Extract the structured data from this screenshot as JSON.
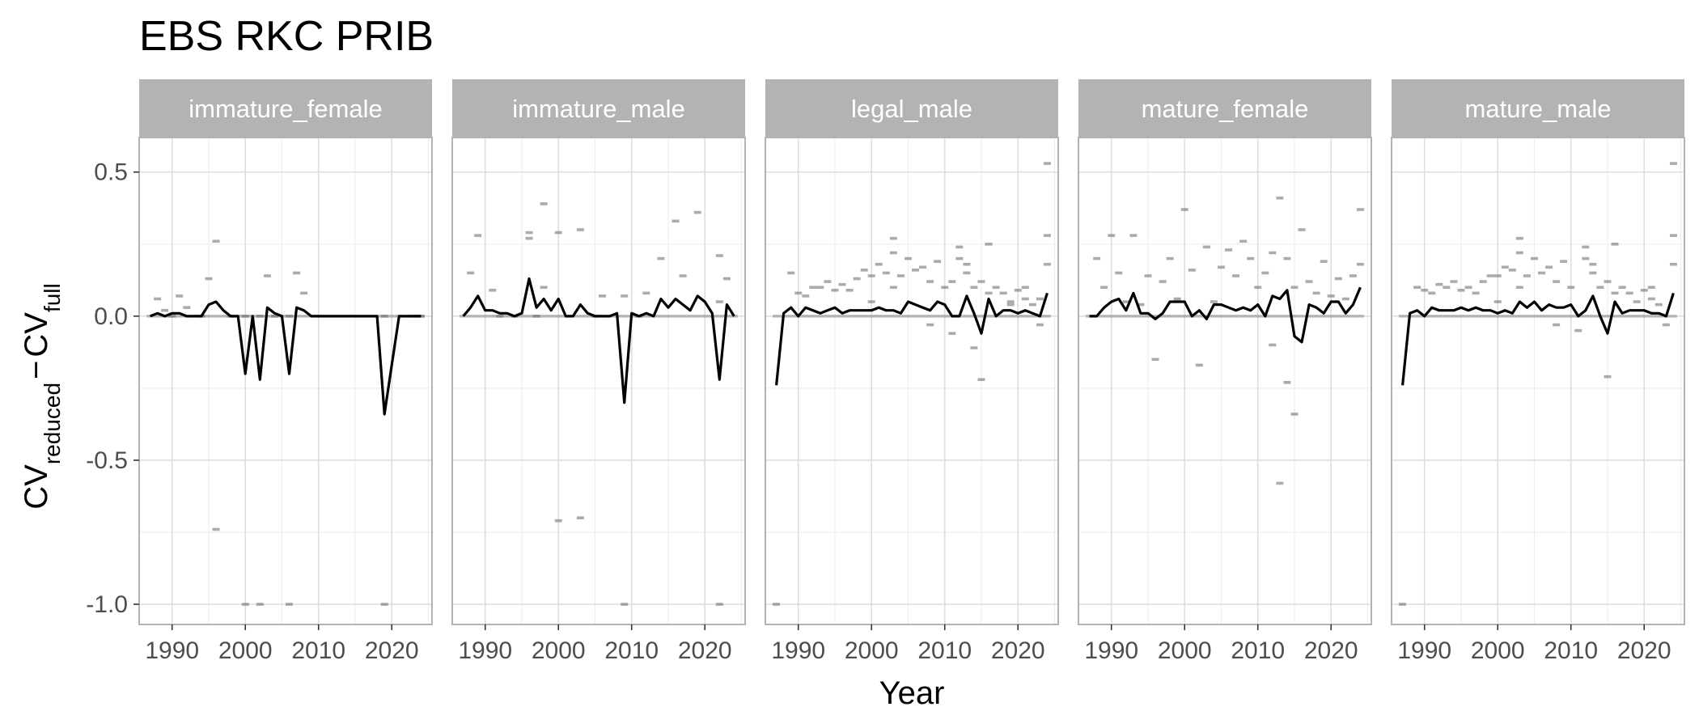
{
  "chart_data": {
    "type": "line",
    "title": "EBS RKC PRIB",
    "xlabel": "Year",
    "ylabel": {
      "main": "CV",
      "sub1": "reduced",
      "minus": "−",
      "main2": "CV",
      "sub2": "full"
    },
    "xlim": [
      1985.5,
      2025.5
    ],
    "ylim": [
      -1.07,
      0.62
    ],
    "x_ticks": [
      1990,
      2000,
      2010,
      2020
    ],
    "x_tick_labels": [
      "1990",
      "2000",
      "2010",
      "2020"
    ],
    "y_ticks": [
      0.5,
      0.0,
      -0.5,
      -1.0
    ],
    "y_tick_labels": [
      "0.5",
      "0.0",
      "-0.5",
      "-1.0"
    ],
    "grid": true,
    "colors": {
      "line": "#000000",
      "points": "#666666",
      "strip": "#b3b3b3",
      "panel_border": "#b3b3b3",
      "grid_major": "#dedede",
      "grid_minor": "#eeeeee"
    },
    "panels": [
      {
        "name": "immature_female",
        "line": {
          "x": [
            1987,
            1988,
            1989,
            1990,
            1991,
            1992,
            1993,
            1994,
            1995,
            1996,
            1997,
            1998,
            1999,
            2000,
            2001,
            2002,
            2003,
            2004,
            2005,
            2006,
            2007,
            2008,
            2009,
            2010,
            2011,
            2012,
            2013,
            2014,
            2015,
            2016,
            2017,
            2018,
            2019,
            2020,
            2021,
            2022,
            2023,
            2024
          ],
          "y": [
            0,
            0.01,
            0,
            0.01,
            0.01,
            0,
            0,
            0,
            0.04,
            0.05,
            0.02,
            0.0,
            0.0,
            -0.2,
            0.0,
            -0.22,
            0.03,
            0.01,
            0.0,
            -0.2,
            0.03,
            0.02,
            0,
            0,
            0,
            0,
            0,
            0,
            0,
            0,
            0,
            0,
            -0.34,
            -0.17,
            0,
            0,
            0,
            0
          ]
        },
        "points": {
          "x": [
            1988,
            1989,
            1991,
            1992,
            1995,
            1996,
            1996,
            2000,
            2002,
            2003,
            2006,
            2007,
            2008,
            2000,
            2002,
            2006,
            2019,
            2019,
            2023,
            2024,
            1990,
            1994,
            1998,
            2004
          ],
          "y": [
            0.06,
            0.02,
            0.07,
            0.03,
            0.13,
            0.26,
            -0.74,
            -1.0,
            -1.0,
            0.14,
            -1.0,
            0.15,
            0.08,
            0.0,
            0.0,
            0.0,
            -1.0,
            0.0,
            0.0,
            0.0,
            0.0,
            0.0,
            0.0,
            0.0
          ]
        }
      },
      {
        "name": "immature_male",
        "line": {
          "x": [
            1987,
            1988,
            1989,
            1990,
            1991,
            1992,
            1993,
            1994,
            1995,
            1996,
            1997,
            1998,
            1999,
            2000,
            2001,
            2002,
            2003,
            2004,
            2005,
            2006,
            2007,
            2008,
            2009,
            2010,
            2011,
            2012,
            2013,
            2014,
            2015,
            2016,
            2017,
            2018,
            2019,
            2020,
            2021,
            2022,
            2023,
            2024
          ],
          "y": [
            0,
            0.03,
            0.07,
            0.02,
            0.02,
            0.01,
            0.01,
            0,
            0.01,
            0.13,
            0.03,
            0.06,
            0.02,
            0.06,
            0,
            0,
            0.04,
            0.01,
            0,
            0,
            0,
            0.01,
            -0.3,
            0.01,
            0,
            0.01,
            0,
            0.06,
            0.03,
            0.06,
            0.04,
            0.02,
            0.07,
            0.05,
            0.01,
            -0.22,
            0.04,
            0
          ]
        },
        "points": {
          "x": [
            1988,
            1989,
            1991,
            1996,
            1996,
            1998,
            1998,
            2000,
            2000,
            2003,
            2003,
            2006,
            2009,
            2009,
            2012,
            2014,
            2016,
            2017,
            2019,
            2022,
            2022,
            2022,
            2023,
            1992,
            1994,
            1997,
            2005,
            2011
          ],
          "y": [
            0.15,
            0.28,
            0.09,
            0.29,
            0.27,
            0.39,
            0.1,
            0.29,
            -0.71,
            0.3,
            -0.7,
            0.07,
            -1.0,
            0.07,
            0.08,
            0.2,
            0.33,
            0.14,
            0.36,
            -1.0,
            0.05,
            0.21,
            0.13,
            0.0,
            0.0,
            0.0,
            0.0,
            0.0
          ]
        }
      },
      {
        "name": "legal_male",
        "line": {
          "x": [
            1987,
            1988,
            1989,
            1990,
            1991,
            1992,
            1993,
            1994,
            1995,
            1996,
            1997,
            1998,
            1999,
            2000,
            2001,
            2002,
            2003,
            2004,
            2005,
            2006,
            2007,
            2008,
            2009,
            2010,
            2011,
            2012,
            2013,
            2014,
            2015,
            2016,
            2017,
            2018,
            2019,
            2020,
            2021,
            2022,
            2023,
            2024
          ],
          "y": [
            -0.24,
            0.01,
            0.03,
            0,
            0.03,
            0.02,
            0.01,
            0.02,
            0.03,
            0.01,
            0.02,
            0.02,
            0.02,
            0.02,
            0.03,
            0.02,
            0.02,
            0.01,
            0.05,
            0.04,
            0.03,
            0.02,
            0.05,
            0.04,
            0,
            0,
            0.07,
            0.01,
            -0.06,
            0.06,
            0,
            0.02,
            0.02,
            0.01,
            0.02,
            0.01,
            0,
            0.08
          ]
        },
        "points": {
          "x": [
            1987,
            1989,
            1990,
            1991,
            1992,
            1993,
            1994,
            1995,
            1996,
            1997,
            1998,
            1999,
            2000,
            2001,
            2002,
            2003,
            2003,
            2004,
            2005,
            2006,
            2007,
            2008,
            2009,
            2010,
            2011,
            2012,
            2012,
            2013,
            2014,
            2014,
            2015,
            2015,
            2016,
            2017,
            2018,
            2019,
            2020,
            2021,
            2022,
            2023,
            2024,
            2024,
            2024,
            2000,
            2003,
            2008,
            2011,
            2013,
            2016,
            2019,
            2021,
            2023
          ],
          "y": [
            -1.0,
            0.15,
            0.08,
            0.07,
            0.1,
            0.1,
            0.12,
            0.09,
            0.11,
            0.09,
            0.13,
            0.16,
            0.14,
            0.18,
            0.15,
            0.27,
            0.22,
            0.14,
            0.2,
            0.16,
            0.17,
            0.12,
            0.19,
            0.1,
            -0.06,
            0.24,
            0.2,
            0.15,
            0.1,
            -0.11,
            -0.22,
            0.12,
            0.25,
            0.1,
            0.08,
            0.05,
            0.09,
            0.06,
            0.04,
            -0.03,
            0.53,
            0.28,
            0.18,
            0.05,
            0.1,
            -0.03,
            0.12,
            0.18,
            0.08,
            0.04,
            0.1,
            0.06
          ]
        }
      },
      {
        "name": "mature_female",
        "line": {
          "x": [
            1987,
            1988,
            1989,
            1990,
            1991,
            1992,
            1993,
            1994,
            1995,
            1996,
            1997,
            1998,
            1999,
            2000,
            2001,
            2002,
            2003,
            2004,
            2005,
            2006,
            2007,
            2008,
            2009,
            2010,
            2011,
            2012,
            2013,
            2014,
            2015,
            2016,
            2017,
            2018,
            2019,
            2020,
            2021,
            2022,
            2023,
            2024
          ],
          "y": [
            0,
            0,
            0.03,
            0.05,
            0.06,
            0.02,
            0.08,
            0.01,
            0.01,
            -0.01,
            0.01,
            0.05,
            0.05,
            0.05,
            0.0,
            0.02,
            -0.01,
            0.04,
            0.04,
            0.03,
            0.02,
            0.03,
            0.02,
            0.04,
            0,
            0.07,
            0.06,
            0.09,
            -0.07,
            -0.09,
            0.04,
            0.03,
            0.01,
            0.05,
            0.05,
            0.01,
            0.04,
            0.1
          ]
        },
        "points": {
          "x": [
            1988,
            1989,
            1990,
            1991,
            1993,
            1995,
            1996,
            1997,
            1998,
            2000,
            2001,
            2002,
            2003,
            2005,
            2006,
            2007,
            2008,
            2009,
            2010,
            2011,
            2012,
            2012,
            2013,
            2013,
            2014,
            2014,
            2015,
            2015,
            2016,
            2017,
            2019,
            2021,
            2022,
            2023,
            2024,
            2024,
            1992,
            1994,
            1999,
            2004,
            2018,
            2020
          ],
          "y": [
            0.2,
            0.1,
            0.28,
            0.15,
            0.28,
            0.14,
            -0.15,
            0.12,
            0.2,
            0.37,
            0.16,
            -0.17,
            0.24,
            0.17,
            0.23,
            0.14,
            0.26,
            0.2,
            0.1,
            0.15,
            0.22,
            -0.1,
            0.41,
            -0.58,
            0.2,
            -0.23,
            -0.34,
            0.1,
            0.3,
            0.12,
            0.19,
            0.13,
            0.06,
            0.14,
            0.37,
            0.18,
            0.05,
            0.04,
            0.06,
            0.05,
            0.08,
            0.07
          ]
        }
      },
      {
        "name": "mature_male",
        "line": {
          "x": [
            1987,
            1988,
            1989,
            1990,
            1991,
            1992,
            1993,
            1994,
            1995,
            1996,
            1997,
            1998,
            1999,
            2000,
            2001,
            2002,
            2003,
            2004,
            2005,
            2006,
            2007,
            2008,
            2009,
            2010,
            2011,
            2012,
            2013,
            2014,
            2015,
            2016,
            2017,
            2018,
            2019,
            2020,
            2021,
            2022,
            2023,
            2024
          ],
          "y": [
            -0.24,
            0.01,
            0.02,
            0.0,
            0.03,
            0.02,
            0.02,
            0.02,
            0.03,
            0.02,
            0.03,
            0.02,
            0.02,
            0.01,
            0.02,
            0.01,
            0.05,
            0.03,
            0.05,
            0.02,
            0.04,
            0.03,
            0.03,
            0.04,
            0.0,
            0.02,
            0.07,
            0.0,
            -0.06,
            0.05,
            0.01,
            0.02,
            0.02,
            0.02,
            0.01,
            0.01,
            0.0,
            0.08
          ]
        },
        "points": {
          "x": [
            1987,
            1989,
            1990,
            1991,
            1992,
            1993,
            1994,
            1995,
            1996,
            1997,
            1998,
            1999,
            2000,
            2001,
            2002,
            2003,
            2003,
            2004,
            2005,
            2006,
            2007,
            2008,
            2009,
            2010,
            2011,
            2012,
            2012,
            2013,
            2014,
            2015,
            2015,
            2016,
            2017,
            2018,
            2019,
            2020,
            2021,
            2022,
            2023,
            2024,
            2024,
            2024,
            2000,
            2003,
            2008,
            2013,
            2016,
            2021
          ],
          "y": [
            -1.0,
            0.1,
            0.09,
            0.08,
            0.11,
            0.1,
            0.12,
            0.09,
            0.1,
            0.08,
            0.12,
            0.14,
            0.14,
            0.17,
            0.16,
            0.27,
            0.22,
            0.14,
            0.2,
            0.15,
            0.17,
            0.12,
            0.19,
            0.1,
            -0.05,
            0.24,
            0.2,
            0.15,
            0.1,
            -0.21,
            0.12,
            0.25,
            0.1,
            0.08,
            0.05,
            0.09,
            0.06,
            0.04,
            -0.03,
            0.53,
            0.28,
            0.18,
            0.05,
            0.1,
            -0.03,
            0.18,
            0.08,
            0.1
          ]
        }
      }
    ]
  }
}
